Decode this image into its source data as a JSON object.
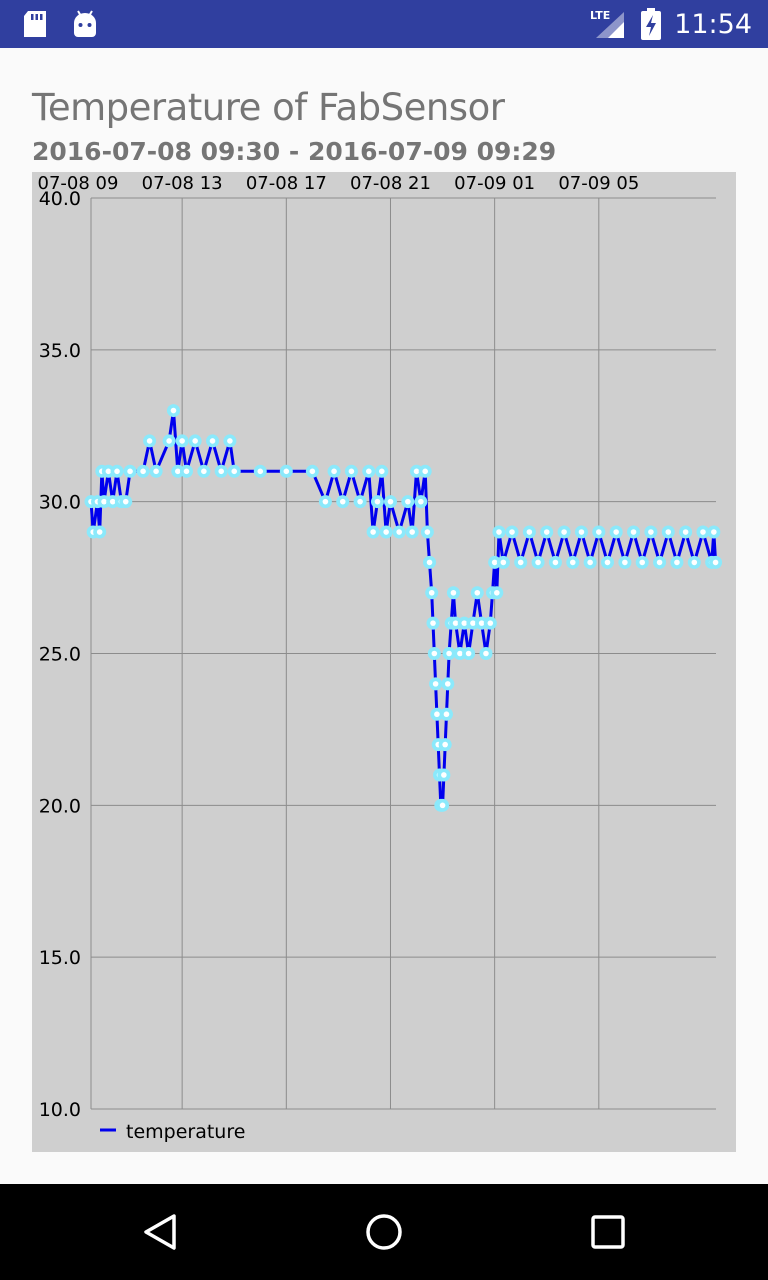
{
  "status_bar": {
    "network": "LTE",
    "time": "11:54"
  },
  "header": {
    "title": "Temperature of FabSensor",
    "subtitle": "2016-07-08 09:30 - 2016-07-09 09:29"
  },
  "colors": {
    "line": "#0000ee",
    "marker": "#8be9fb",
    "chart_bg": "#cfcfcf",
    "grid": "#8c8c8c"
  },
  "chart_data": {
    "type": "line",
    "title": "Temperature of FabSensor",
    "subtitle": "2016-07-08 09:30 - 2016-07-09 09:29",
    "x_ticks": [
      "07-08 09",
      "07-08 13",
      "07-08 17",
      "07-08 21",
      "07-09 01",
      "07-09 05"
    ],
    "y_ticks": [
      "10.0",
      "15.0",
      "20.0",
      "25.0",
      "30.0",
      "35.0",
      "40.0"
    ],
    "ylim": [
      10,
      40
    ],
    "xlim": [
      "2016-07-08 09:30",
      "2016-07-09 09:29"
    ],
    "grid": true,
    "legend": "bottom-left",
    "series": [
      {
        "name": "temperature",
        "points": [
          [
            "2016-07-08 09:30",
            30
          ],
          [
            "2016-07-08 09:35",
            29
          ],
          [
            "2016-07-08 09:45",
            30
          ],
          [
            "2016-07-08 09:50",
            29
          ],
          [
            "2016-07-08 09:55",
            31
          ],
          [
            "2016-07-08 10:00",
            30
          ],
          [
            "2016-07-08 10:10",
            31
          ],
          [
            "2016-07-08 10:20",
            30
          ],
          [
            "2016-07-08 10:30",
            31
          ],
          [
            "2016-07-08 10:40",
            30
          ],
          [
            "2016-07-08 10:50",
            30
          ],
          [
            "2016-07-08 11:00",
            31
          ],
          [
            "2016-07-08 11:30",
            31
          ],
          [
            "2016-07-08 11:45",
            32
          ],
          [
            "2016-07-08 12:00",
            31
          ],
          [
            "2016-07-08 12:30",
            32
          ],
          [
            "2016-07-08 12:40",
            33
          ],
          [
            "2016-07-08 12:50",
            31
          ],
          [
            "2016-07-08 13:00",
            32
          ],
          [
            "2016-07-08 13:10",
            31
          ],
          [
            "2016-07-08 13:30",
            32
          ],
          [
            "2016-07-08 13:50",
            31
          ],
          [
            "2016-07-08 14:10",
            32
          ],
          [
            "2016-07-08 14:30",
            31
          ],
          [
            "2016-07-08 14:50",
            32
          ],
          [
            "2016-07-08 15:00",
            31
          ],
          [
            "2016-07-08 16:00",
            31
          ],
          [
            "2016-07-08 17:00",
            31
          ],
          [
            "2016-07-08 18:00",
            31
          ],
          [
            "2016-07-08 18:30",
            30
          ],
          [
            "2016-07-08 18:50",
            31
          ],
          [
            "2016-07-08 19:10",
            30
          ],
          [
            "2016-07-08 19:30",
            31
          ],
          [
            "2016-07-08 19:50",
            30
          ],
          [
            "2016-07-08 20:10",
            31
          ],
          [
            "2016-07-08 20:20",
            29
          ],
          [
            "2016-07-08 20:30",
            30
          ],
          [
            "2016-07-08 20:40",
            31
          ],
          [
            "2016-07-08 20:50",
            29
          ],
          [
            "2016-07-08 21:00",
            30
          ],
          [
            "2016-07-08 21:20",
            29
          ],
          [
            "2016-07-08 21:40",
            30
          ],
          [
            "2016-07-08 21:50",
            29
          ],
          [
            "2016-07-08 22:00",
            31
          ],
          [
            "2016-07-08 22:10",
            30
          ],
          [
            "2016-07-08 22:20",
            31
          ],
          [
            "2016-07-08 22:25",
            29
          ],
          [
            "2016-07-08 22:30",
            28
          ],
          [
            "2016-07-08 22:35",
            27
          ],
          [
            "2016-07-08 22:38",
            26
          ],
          [
            "2016-07-08 22:41",
            25
          ],
          [
            "2016-07-08 22:44",
            24
          ],
          [
            "2016-07-08 22:47",
            23
          ],
          [
            "2016-07-08 22:50",
            22
          ],
          [
            "2016-07-08 22:53",
            21
          ],
          [
            "2016-07-08 22:56",
            20
          ],
          [
            "2016-07-08 23:00",
            20
          ],
          [
            "2016-07-08 23:03",
            21
          ],
          [
            "2016-07-08 23:06",
            22
          ],
          [
            "2016-07-08 23:09",
            23
          ],
          [
            "2016-07-08 23:12",
            24
          ],
          [
            "2016-07-08 23:15",
            25
          ],
          [
            "2016-07-08 23:20",
            26
          ],
          [
            "2016-07-08 23:25",
            27
          ],
          [
            "2016-07-08 23:30",
            26
          ],
          [
            "2016-07-08 23:40",
            25
          ],
          [
            "2016-07-08 23:50",
            26
          ],
          [
            "2016-07-09 00:00",
            25
          ],
          [
            "2016-07-09 00:10",
            26
          ],
          [
            "2016-07-09 00:20",
            27
          ],
          [
            "2016-07-09 00:30",
            26
          ],
          [
            "2016-07-09 00:40",
            25
          ],
          [
            "2016-07-09 00:50",
            26
          ],
          [
            "2016-07-09 00:55",
            27
          ],
          [
            "2016-07-09 01:00",
            28
          ],
          [
            "2016-07-09 01:05",
            27
          ],
          [
            "2016-07-09 01:10",
            29
          ],
          [
            "2016-07-09 01:20",
            28
          ],
          [
            "2016-07-09 01:40",
            29
          ],
          [
            "2016-07-09 02:00",
            28
          ],
          [
            "2016-07-09 02:20",
            29
          ],
          [
            "2016-07-09 02:40",
            28
          ],
          [
            "2016-07-09 03:00",
            29
          ],
          [
            "2016-07-09 03:20",
            28
          ],
          [
            "2016-07-09 03:40",
            29
          ],
          [
            "2016-07-09 04:00",
            28
          ],
          [
            "2016-07-09 04:20",
            29
          ],
          [
            "2016-07-09 04:40",
            28
          ],
          [
            "2016-07-09 05:00",
            29
          ],
          [
            "2016-07-09 05:20",
            28
          ],
          [
            "2016-07-09 05:40",
            29
          ],
          [
            "2016-07-09 06:00",
            28
          ],
          [
            "2016-07-09 06:20",
            29
          ],
          [
            "2016-07-09 06:40",
            28
          ],
          [
            "2016-07-09 07:00",
            29
          ],
          [
            "2016-07-09 07:20",
            28
          ],
          [
            "2016-07-09 07:40",
            29
          ],
          [
            "2016-07-09 08:00",
            28
          ],
          [
            "2016-07-09 08:20",
            29
          ],
          [
            "2016-07-09 08:40",
            28
          ],
          [
            "2016-07-09 09:00",
            29
          ],
          [
            "2016-07-09 09:20",
            28
          ],
          [
            "2016-07-09 09:25",
            29
          ],
          [
            "2016-07-09 09:29",
            28
          ]
        ]
      }
    ]
  }
}
